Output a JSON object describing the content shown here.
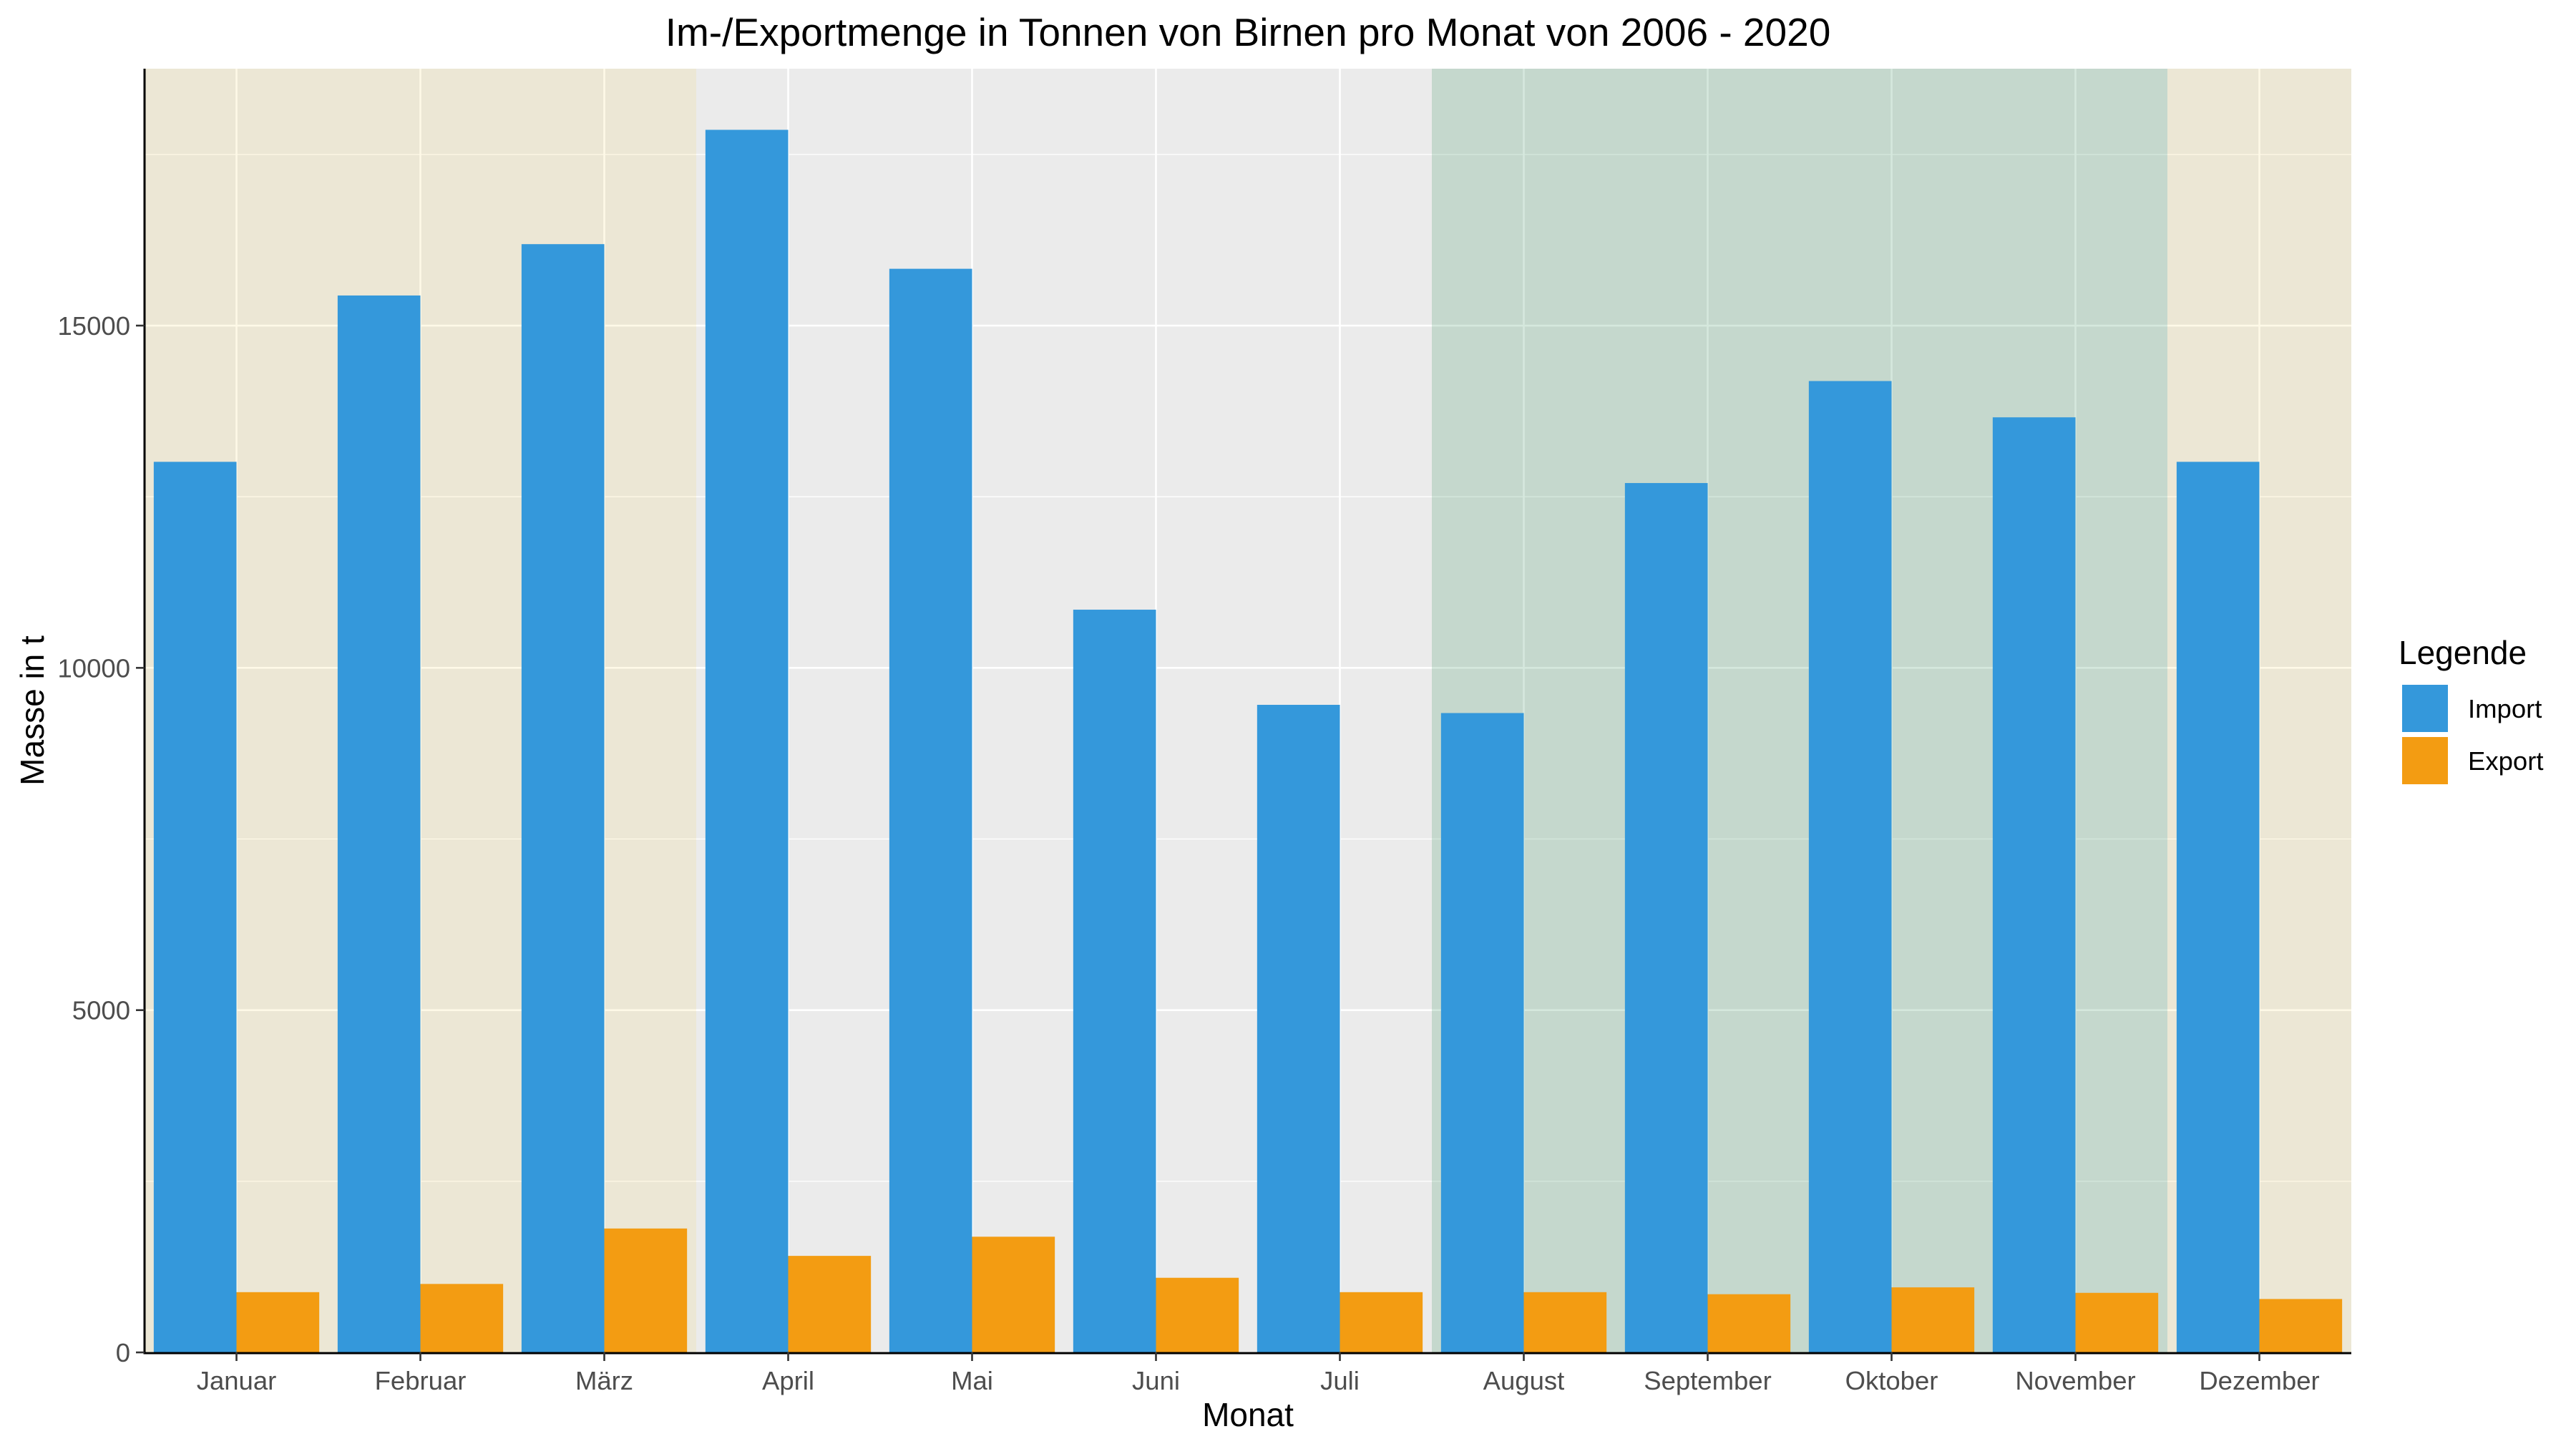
{
  "chart_data": {
    "type": "bar",
    "title": "Im-/Exportmenge in Tonnen von Birnen pro Monat von 2006 - 2020",
    "xlabel": "Monat",
    "ylabel": "Masse in t",
    "categories": [
      "Januar",
      "Februar",
      "März",
      "April",
      "Mai",
      "Juni",
      "Juli",
      "August",
      "September",
      "Oktober",
      "November",
      "Dezember"
    ],
    "series": [
      {
        "name": "Import",
        "color": "#3498DB",
        "values": [
          13010,
          15440,
          16190,
          17860,
          15830,
          10850,
          9460,
          9340,
          12700,
          14190,
          13660,
          13010
        ]
      },
      {
        "name": "Export",
        "color": "#F39C12",
        "values": [
          880,
          1000,
          1810,
          1410,
          1690,
          1090,
          880,
          880,
          850,
          950,
          870,
          780
        ]
      }
    ],
    "ylim": [
      0,
      18753
    ],
    "yticks": [
      0,
      5000,
      10000,
      15000
    ],
    "grid": true,
    "panel_background": "#EBEBEB",
    "background_bands": [
      {
        "from": "Januar",
        "to": "März",
        "color": "#F1C40F",
        "opacity": 0.1
      },
      {
        "from": "August",
        "to": "November",
        "color": "#2E8B57",
        "opacity": 0.2
      },
      {
        "from": "Dezember",
        "to": "Dezember",
        "color": "#F1C40F",
        "opacity": 0.1
      }
    ],
    "legend": {
      "title": "Legende",
      "position": "right"
    }
  }
}
